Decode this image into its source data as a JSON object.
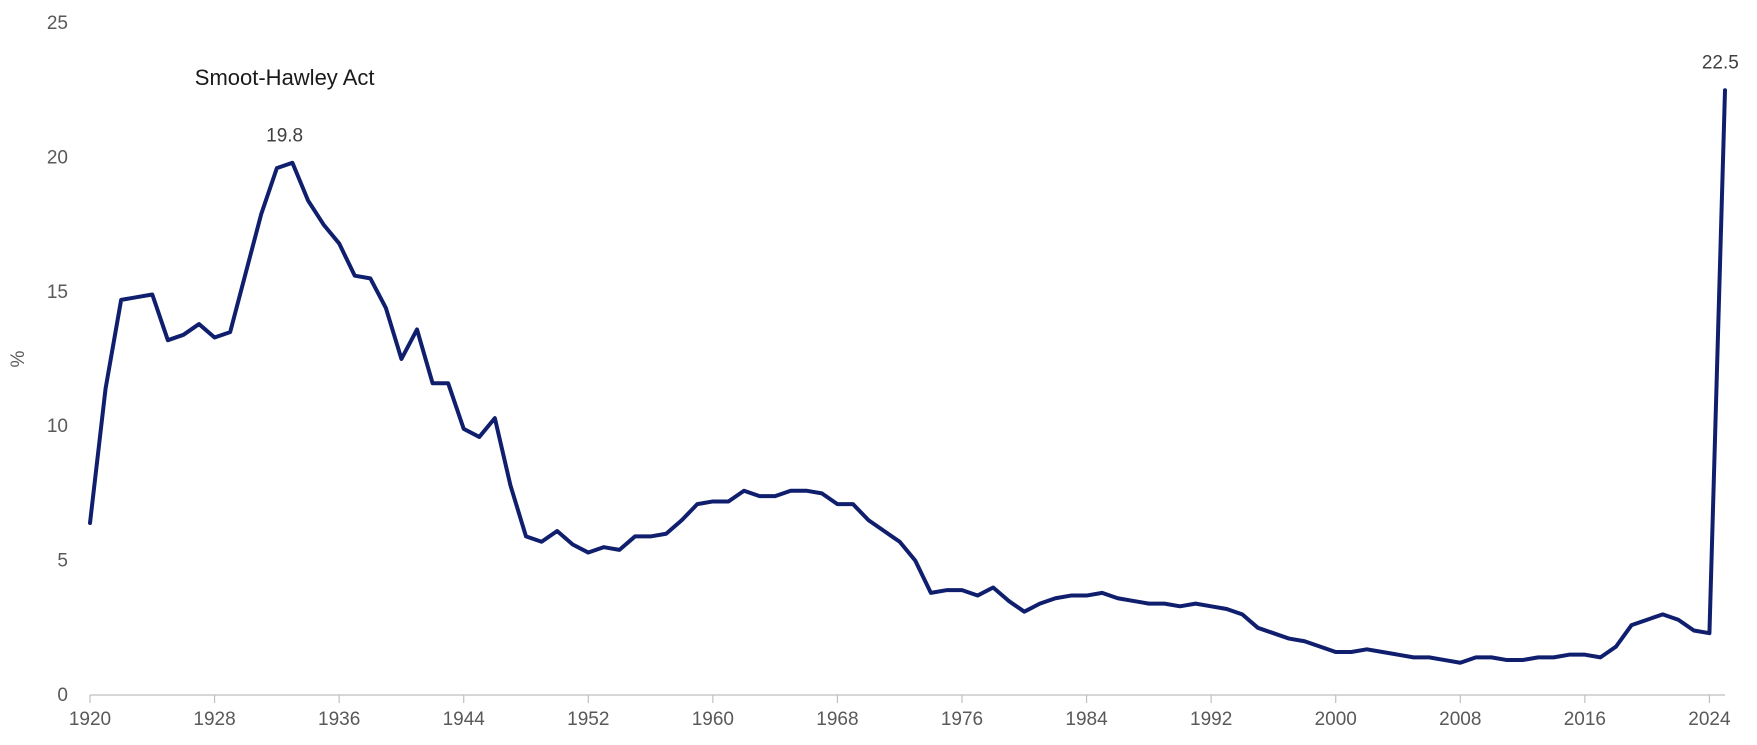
{
  "chart_data": {
    "type": "line",
    "title": "",
    "xlabel": "",
    "ylabel": "%",
    "xlim": [
      1920,
      2025
    ],
    "ylim": [
      0,
      25
    ],
    "grid": false,
    "colors": {
      "series": "#0f1f6e",
      "axis": "#bfbfbf",
      "tick_text": "#595959"
    },
    "x_ticks": [
      1920,
      1928,
      1936,
      1944,
      1952,
      1960,
      1968,
      1976,
      1984,
      1992,
      2000,
      2008,
      2016,
      2024
    ],
    "x_tick_labels": [
      "1920",
      "1928",
      "1936",
      "1944",
      "1952",
      "1960",
      "1968",
      "1976",
      "1984",
      "1992",
      "2000",
      "2008",
      "2016",
      "2024"
    ],
    "y_ticks": [
      0,
      5,
      10,
      15,
      20,
      25
    ],
    "y_tick_labels": [
      "0",
      "5",
      "10",
      "15",
      "20",
      "25"
    ],
    "series": [
      {
        "x": [
          1920,
          1921,
          1922,
          1923,
          1924,
          1925,
          1926,
          1927,
          1928,
          1929,
          1930,
          1931,
          1932,
          1933,
          1934,
          1935,
          1936,
          1937,
          1938,
          1939,
          1940,
          1941,
          1942,
          1943,
          1944,
          1945,
          1946,
          1947,
          1948,
          1949,
          1950,
          1951,
          1952,
          1953,
          1954,
          1955,
          1956,
          1957,
          1958,
          1959,
          1960,
          1961,
          1962,
          1963,
          1964,
          1965,
          1966,
          1967,
          1968,
          1969,
          1970,
          1971,
          1972,
          1973,
          1974,
          1975,
          1976,
          1977,
          1978,
          1979,
          1980,
          1981,
          1982,
          1983,
          1984,
          1985,
          1986,
          1987,
          1988,
          1989,
          1990,
          1991,
          1992,
          1993,
          1994,
          1995,
          1996,
          1997,
          1998,
          1999,
          2000,
          2001,
          2002,
          2003,
          2004,
          2005,
          2006,
          2007,
          2008,
          2009,
          2010,
          2011,
          2012,
          2013,
          2014,
          2015,
          2016,
          2017,
          2018,
          2019,
          2020,
          2021,
          2022,
          2023,
          2024,
          2025
        ],
        "y": [
          6.4,
          11.4,
          14.7,
          14.8,
          14.9,
          13.2,
          13.4,
          13.8,
          13.3,
          13.5,
          15.7,
          17.9,
          19.6,
          19.8,
          18.4,
          17.5,
          16.8,
          15.6,
          15.5,
          14.4,
          12.5,
          13.6,
          11.6,
          11.6,
          9.9,
          9.6,
          10.3,
          7.8,
          5.9,
          5.7,
          6.1,
          5.6,
          5.3,
          5.5,
          5.4,
          5.9,
          5.9,
          6.0,
          6.5,
          7.1,
          7.2,
          7.2,
          7.6,
          7.4,
          7.4,
          7.6,
          7.6,
          7.5,
          7.1,
          7.1,
          6.5,
          6.1,
          5.7,
          5.0,
          3.8,
          3.9,
          3.9,
          3.7,
          4.0,
          3.5,
          3.1,
          3.4,
          3.6,
          3.7,
          3.7,
          3.8,
          3.6,
          3.5,
          3.4,
          3.4,
          3.3,
          3.4,
          3.3,
          3.2,
          3.0,
          2.5,
          2.3,
          2.1,
          2.0,
          1.8,
          1.6,
          1.6,
          1.7,
          1.6,
          1.5,
          1.4,
          1.4,
          1.3,
          1.2,
          1.4,
          1.4,
          1.3,
          1.3,
          1.4,
          1.4,
          1.5,
          1.5,
          1.4,
          1.8,
          2.6,
          2.8,
          3.0,
          2.8,
          2.4,
          2.3,
          22.5
        ]
      }
    ],
    "annotations": [
      {
        "text": "Smoot-Hawley Act",
        "x": 1932.5,
        "y": 22.7
      },
      {
        "text": "19.8",
        "x": 1932.5,
        "y": 20.6
      },
      {
        "text": "22.5",
        "x": 2024.7,
        "y": 23.3
      }
    ]
  }
}
